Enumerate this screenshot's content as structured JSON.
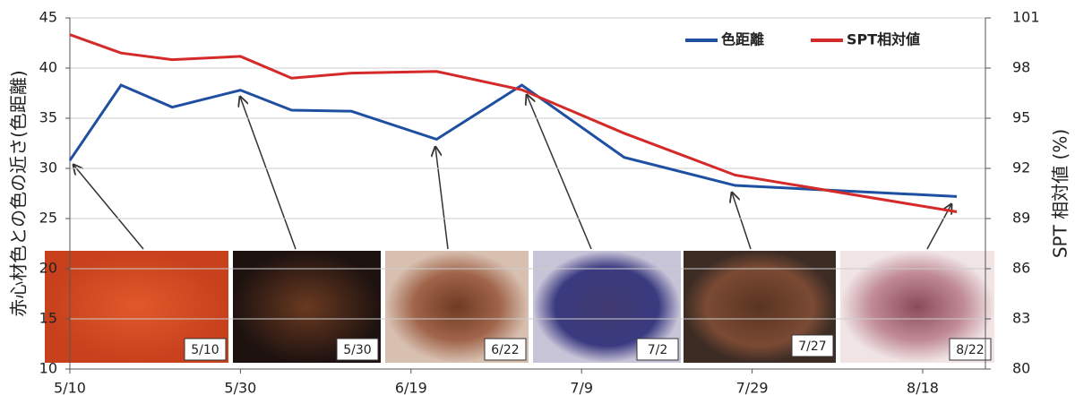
{
  "chart_data": {
    "type": "line",
    "x": [
      "5/10",
      "5/16",
      "5/22",
      "5/30",
      "6/5",
      "6/12",
      "6/22",
      "7/2",
      "7/14",
      "7/27",
      "8/22"
    ],
    "xticks": [
      "5/10",
      "5/30",
      "6/19",
      "7/9",
      "7/29",
      "8/18"
    ],
    "ylim": [
      10,
      45
    ],
    "yticks": [
      10,
      15,
      20,
      25,
      30,
      35,
      40,
      45
    ],
    "y2lim": [
      80,
      101
    ],
    "y2ticks": [
      80,
      83,
      86,
      89,
      92,
      95,
      98,
      101
    ],
    "ylabel": "赤心材色との色の近さ(色距離)",
    "y2label": "SPT 相対値 (%)",
    "grid": true,
    "legend": "top-right",
    "series": [
      {
        "name": "色距離",
        "color": "#1f4fa0",
        "values": [
          30.8,
          38.3,
          36.1,
          37.8,
          35.8,
          35.7,
          32.9,
          38.3,
          31.1,
          28.3,
          27.2
        ]
      },
      {
        "name": "SPT相対値",
        "color": "#d42a2a",
        "axis": "y2",
        "values": [
          100.0,
          98.9,
          98.5,
          98.7,
          97.4,
          97.7,
          97.8,
          96.7,
          94.1,
          91.6,
          89.4
        ]
      }
    ]
  },
  "photos": [
    "5/10",
    "5/30",
    "6/22",
    "7/2",
    "7/27",
    "8/22"
  ]
}
